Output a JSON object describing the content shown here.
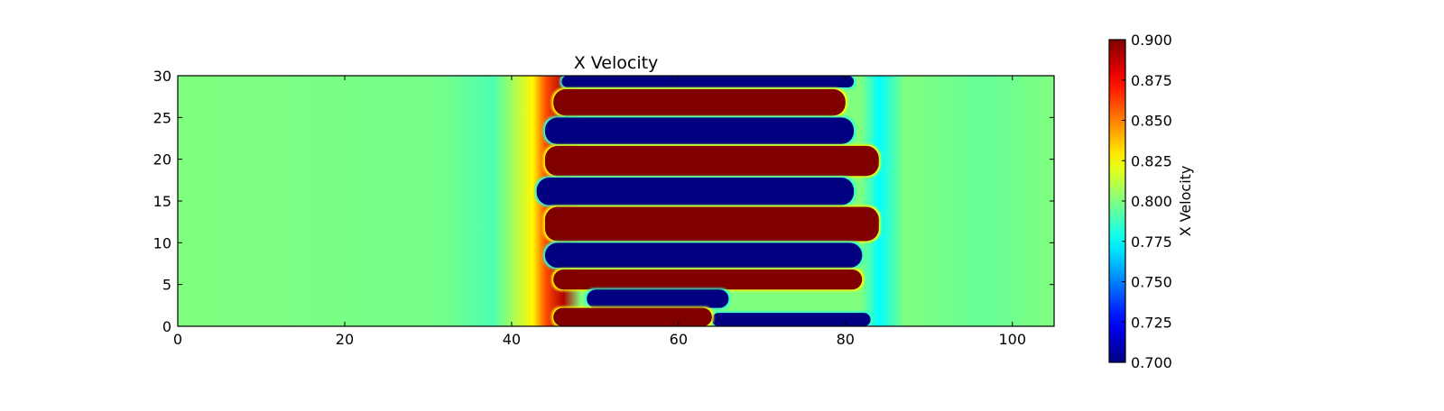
{
  "chart_data": [
    {
      "type": "heatmap",
      "title": "X Velocity",
      "xlabel": "",
      "ylabel": "",
      "xlim": [
        0,
        105
      ],
      "ylim": [
        0,
        30
      ],
      "x_ticks": [
        0,
        20,
        40,
        60,
        80,
        100
      ],
      "y_ticks": [
        0,
        5,
        10,
        15,
        20,
        25,
        30
      ],
      "grid": false,
      "colormap": "jet",
      "value_range": [
        0.7,
        0.9
      ],
      "background_value": 0.8,
      "mixing_region_x": [
        44,
        83
      ],
      "bands": [
        {
          "kind": "low",
          "x": [
            46,
            81
          ],
          "y": [
            28.6,
            30
          ],
          "value": 0.7
        },
        {
          "kind": "high",
          "x": [
            45,
            80
          ],
          "y": [
            25.2,
            28.4
          ],
          "value": 0.9
        },
        {
          "kind": "low",
          "x": [
            44,
            81
          ],
          "y": [
            21.8,
            25.0
          ],
          "value": 0.7
        },
        {
          "kind": "high",
          "x": [
            44,
            84
          ],
          "y": [
            18.0,
            21.6
          ],
          "value": 0.9
        },
        {
          "kind": "low",
          "x": [
            43,
            81
          ],
          "y": [
            14.5,
            17.8
          ],
          "value": 0.7
        },
        {
          "kind": "high",
          "x": [
            44,
            84
          ],
          "y": [
            10.2,
            14.3
          ],
          "value": 0.9
        },
        {
          "kind": "low",
          "x": [
            44,
            82
          ],
          "y": [
            7.0,
            10.0
          ],
          "value": 0.7
        },
        {
          "kind": "high",
          "x": [
            45,
            82
          ],
          "y": [
            4.4,
            6.8
          ],
          "value": 0.9
        },
        {
          "kind": "low",
          "x": [
            49,
            66
          ],
          "y": [
            2.2,
            4.4
          ],
          "value": 0.7
        },
        {
          "kind": "low",
          "x": [
            64,
            83
          ],
          "y": [
            0,
            1.6
          ],
          "value": 0.7
        },
        {
          "kind": "high",
          "x": [
            45,
            64
          ],
          "y": [
            0,
            2.2
          ],
          "value": 0.9
        }
      ]
    },
    {
      "type": "colorbar",
      "label": "X Velocity",
      "colormap": "jet",
      "range": [
        0.7,
        0.9
      ],
      "ticks": [
        "0.900",
        "0.875",
        "0.850",
        "0.825",
        "0.800",
        "0.775",
        "0.750",
        "0.725",
        "0.700"
      ]
    }
  ]
}
